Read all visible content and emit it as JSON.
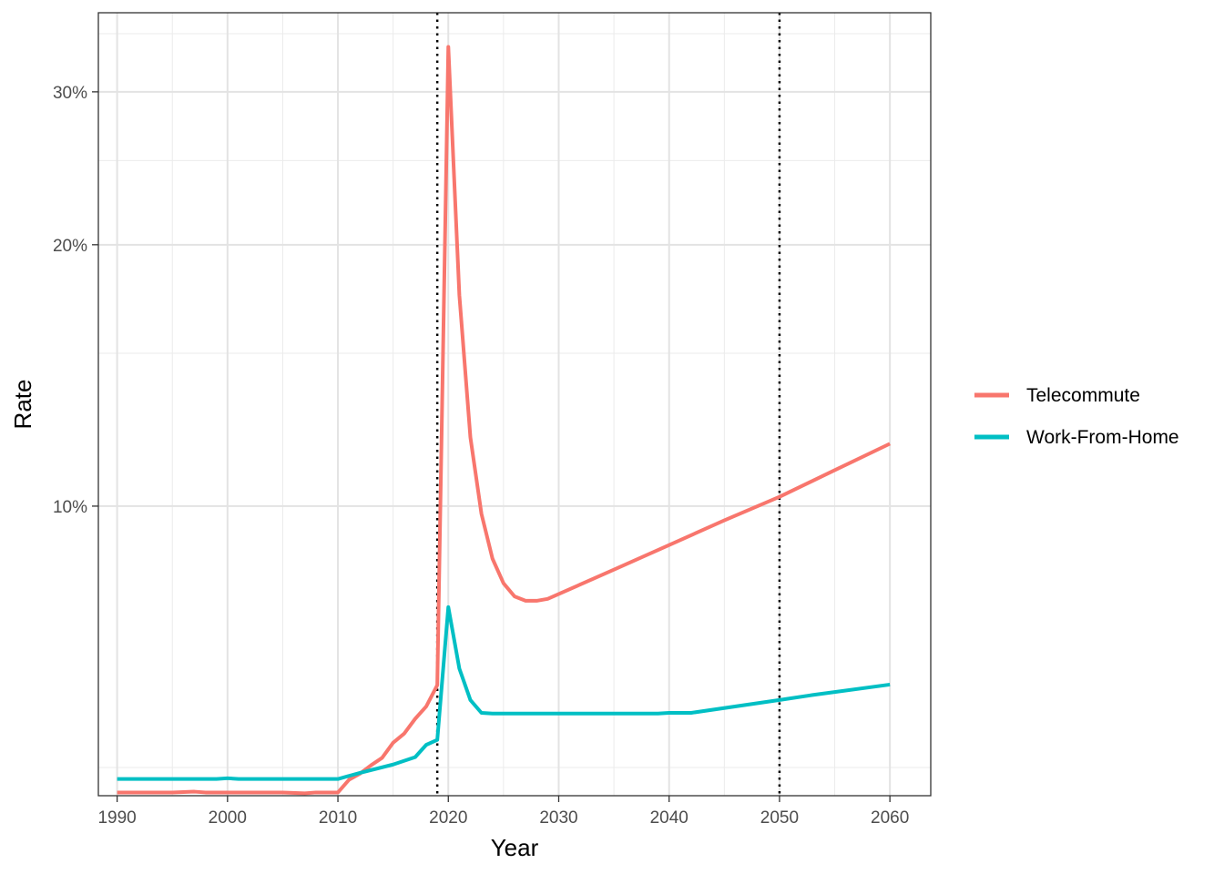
{
  "chart_data": {
    "type": "line",
    "title": "",
    "xlabel": "Year",
    "ylabel": "Rate",
    "y_scale": "log",
    "xlim": [
      1988.3,
      2063.7
    ],
    "ylim": [
      0.0464,
      0.37
    ],
    "x_ticks": [
      1990,
      2000,
      2010,
      2020,
      2030,
      2040,
      2050,
      2060
    ],
    "x_minor_ticks": [
      1995,
      2005,
      2015,
      2025,
      2035,
      2045,
      2055
    ],
    "y_ticks": [
      {
        "value": 0.1,
        "label": "10%"
      },
      {
        "value": 0.2,
        "label": "20%"
      },
      {
        "value": 0.3,
        "label": "30%"
      }
    ],
    "y_minor_ticks": [
      0.05,
      0.15,
      0.25,
      0.35
    ],
    "vlines": [
      {
        "x": 2019,
        "style": "dotted"
      },
      {
        "x": 2050,
        "style": "dotted"
      }
    ],
    "grid": true,
    "legend_position": "right",
    "series": [
      {
        "name": "Telecommute",
        "color": "#F8766D",
        "points": [
          [
            1990,
            0.0468
          ],
          [
            1995,
            0.0468
          ],
          [
            1997,
            0.0469
          ],
          [
            1998,
            0.0468
          ],
          [
            2005,
            0.0468
          ],
          [
            2007,
            0.0467
          ],
          [
            2008,
            0.0468
          ],
          [
            2010,
            0.0468
          ],
          [
            2011,
            0.0484
          ],
          [
            2012,
            0.0492
          ],
          [
            2013,
            0.0503
          ],
          [
            2014,
            0.0513
          ],
          [
            2015,
            0.0534
          ],
          [
            2016,
            0.0547
          ],
          [
            2017,
            0.0569
          ],
          [
            2018,
            0.0588
          ],
          [
            2019,
            0.0622
          ],
          [
            2020,
            0.338
          ],
          [
            2021,
            0.175
          ],
          [
            2022,
            0.12
          ],
          [
            2023,
            0.098
          ],
          [
            2024,
            0.087
          ],
          [
            2025,
            0.0815
          ],
          [
            2026,
            0.0787
          ],
          [
            2027,
            0.0778
          ],
          [
            2028,
            0.0778
          ],
          [
            2029,
            0.0782
          ],
          [
            2035,
            0.0845
          ],
          [
            2040,
            0.0902
          ],
          [
            2045,
            0.0963
          ],
          [
            2050,
            0.1025
          ],
          [
            2055,
            0.11
          ],
          [
            2060,
            0.118
          ]
        ]
      },
      {
        "name": "Work-From-Home",
        "color": "#00BFC4",
        "points": [
          [
            1990,
            0.0485
          ],
          [
            1999,
            0.0485
          ],
          [
            2000,
            0.0486
          ],
          [
            2001,
            0.0485
          ],
          [
            2010,
            0.0485
          ],
          [
            2011,
            0.0489
          ],
          [
            2012,
            0.0493
          ],
          [
            2015,
            0.0504
          ],
          [
            2017,
            0.0514
          ],
          [
            2018,
            0.0531
          ],
          [
            2019,
            0.0538
          ],
          [
            2020,
            0.0765
          ],
          [
            2021,
            0.065
          ],
          [
            2022,
            0.0598
          ],
          [
            2023,
            0.0578
          ],
          [
            2024,
            0.0577
          ],
          [
            2030,
            0.0577
          ],
          [
            2039,
            0.0577
          ],
          [
            2040,
            0.0578
          ],
          [
            2042,
            0.0578
          ],
          [
            2050,
            0.0598
          ],
          [
            2053,
            0.0606
          ],
          [
            2060,
            0.0623
          ]
        ]
      }
    ]
  }
}
